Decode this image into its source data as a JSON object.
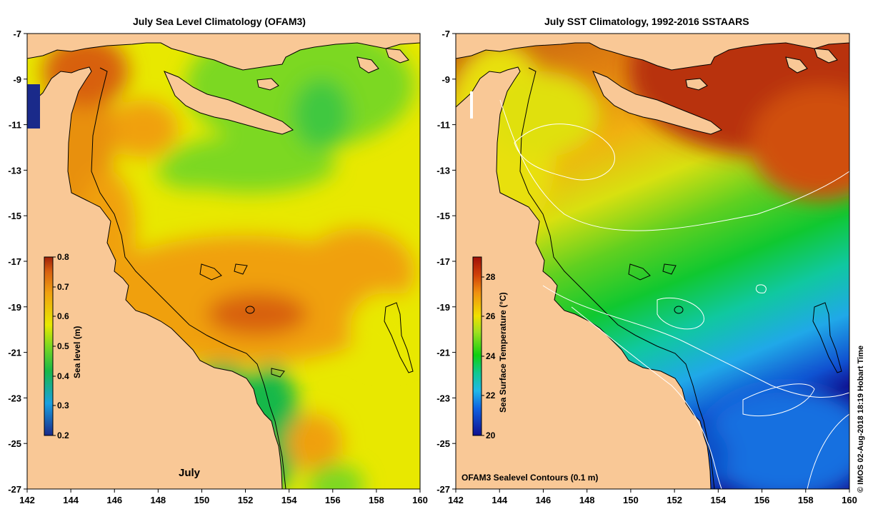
{
  "left_panel": {
    "title": "July Sea Level Climatology (OFAM3)",
    "month_label": "July",
    "colorbar": {
      "label": "Sea level (m)",
      "ticks": [
        "0.8",
        "0.7",
        "0.6",
        "0.5",
        "0.4",
        "0.3",
        "0.2"
      ],
      "range": [
        0.2,
        0.8
      ]
    }
  },
  "right_panel": {
    "title": "July SST Climatology, 1992-2016 SSTAARS",
    "contour_note": "OFAM3 Sealevel Contours (0.1 m)",
    "colorbar": {
      "label": "Sea Surface Temperature (°C)",
      "ticks": [
        "28",
        "26",
        "24",
        "22",
        "20"
      ],
      "range": [
        20,
        29
      ]
    }
  },
  "axes": {
    "x_ticks": [
      "142",
      "144",
      "146",
      "148",
      "150",
      "152",
      "154",
      "156",
      "158",
      "160"
    ],
    "y_ticks": [
      "-7",
      "-9",
      "-11",
      "-13",
      "-15",
      "-17",
      "-19",
      "-21",
      "-23",
      "-25",
      "-27"
    ]
  },
  "credit": "© IMOS 02-Aug-2018 18:19 Hobart Time",
  "colors": {
    "land": "#f9c896",
    "sealevel_scale": [
      "#1a2a8a",
      "#1aa0e0",
      "#18b848",
      "#7cd820",
      "#e8e800",
      "#f0a010",
      "#d86010",
      "#a02008"
    ],
    "sst_scale": [
      "#101090",
      "#1060e0",
      "#20b8e8",
      "#10c890",
      "#10d010",
      "#a0e020",
      "#f0e000",
      "#f09010",
      "#d04008",
      "#a01008"
    ]
  }
}
